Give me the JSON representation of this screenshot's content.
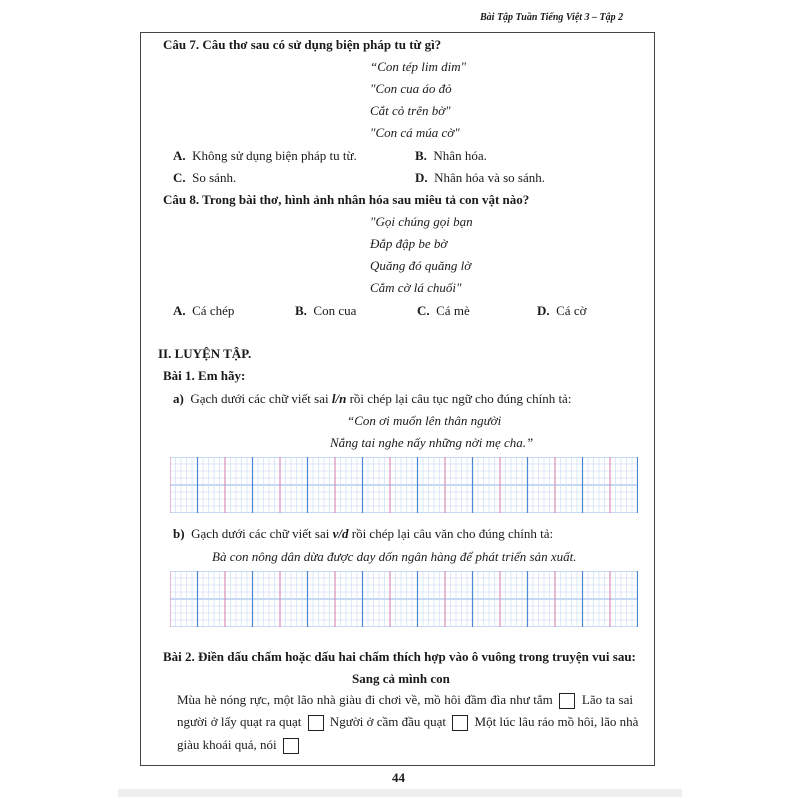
{
  "header": {
    "running_title": "Bài Tập Tuần Tiếng Việt 3 – Tập 2"
  },
  "q7": {
    "title": "Câu 7. Câu thơ sau có sử dụng biện pháp tu từ gì?",
    "poem": [
      "“Con tép lim dim\"",
      "\"Con cua áo đỏ",
      "Cắt cỏ trên bờ\"",
      "\"Con cá múa cờ\""
    ],
    "options": [
      {
        "letter": "A.",
        "text": "Không sử dụng biện pháp tu từ."
      },
      {
        "letter": "B.",
        "text": "Nhân hóa."
      },
      {
        "letter": "C.",
        "text": "So sánh."
      },
      {
        "letter": "D.",
        "text": "Nhân hóa và so sánh."
      }
    ]
  },
  "q8": {
    "title": "Câu 8. Trong bài thơ, hình ảnh nhân hóa sau miêu tả con vật nào?",
    "poem": [
      "\"Gọi chúng gọi bạn",
      "Đắp đập be bờ",
      "Quăng đó quăng lờ",
      "Cắm cờ lá chuối\""
    ],
    "options": [
      {
        "letter": "A.",
        "text": "Cá chép"
      },
      {
        "letter": "B.",
        "text": "Con cua"
      },
      {
        "letter": "C.",
        "text": "Cá mè"
      },
      {
        "letter": "D.",
        "text": "Cá cờ"
      }
    ]
  },
  "section2": {
    "title": "II. LUYỆN TẬP.",
    "bai1": {
      "title": "Bài 1. Em hãy:",
      "a": {
        "label": "a)",
        "text_before": "Gạch dưới các chữ viết sai ",
        "em": "l/n",
        "text_after": " rồi chép lại câu tục ngữ cho đúng chính tả:",
        "quote": [
          "“Con ơi muốn lên thân người",
          "Nắng tai nghe nấy những nời mẹ cha.”"
        ]
      },
      "b": {
        "label": "b)",
        "text_before": "Gạch dưới các chữ viết sai ",
        "em": "v/d",
        "text_after": " rồi chép lại câu văn cho đúng chính tả:",
        "quote": "Bà con nông dân dừa được day dốn ngân hàng để phát triển sản xuất."
      }
    },
    "bai2": {
      "title": "Bài 2. Điền dấu chấm hoặc dấu hai chấm thích hợp vào ô vuông trong truyện vui sau:",
      "story_title": "Sang cả mình con",
      "segments": [
        "Mùa hè nóng rực, một lão nhà giàu đi chơi về, mồ hôi đầm đìa như tắm",
        "Lão ta sai",
        "người ở lấy quạt ra quạt",
        "Người ở cầm đầu quạt",
        "Một lúc lâu ráo mồ hôi, lão nhà",
        "giàu khoái quá, nói"
      ]
    }
  },
  "footer": {
    "page_number": "44"
  }
}
